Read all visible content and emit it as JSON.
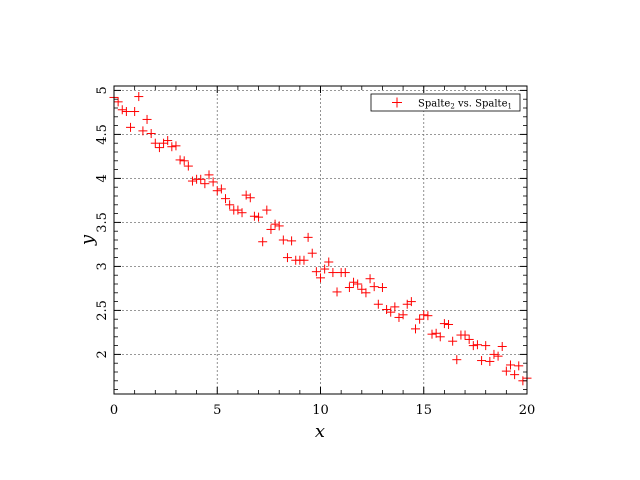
{
  "chart_data": {
    "type": "scatter",
    "xlabel": "x",
    "ylabel": "y",
    "xlim": [
      0,
      20
    ],
    "ylim": [
      1.55,
      5.05
    ],
    "grid": true,
    "legend_position": "top-right",
    "x_ticks": [
      "0",
      "5",
      "10",
      "15",
      "20"
    ],
    "y_ticks": [
      "2",
      "2.5",
      "3",
      "3.5",
      "4",
      "4.5",
      "5"
    ],
    "y_tick_values": [
      2,
      2.5,
      3,
      3.5,
      4,
      4.5,
      5
    ],
    "x_tick_values": [
      0,
      5,
      10,
      15,
      20
    ],
    "legend": {
      "main": "Spalte",
      "sub1": "2",
      "mid": " vs. Spalte",
      "sub2": "1"
    },
    "marker": "+",
    "color": "#ff0000",
    "series": [
      {
        "points": [
          [
            0.0,
            4.92
          ],
          [
            0.2,
            4.87
          ],
          [
            0.4,
            4.78
          ],
          [
            0.6,
            4.76
          ],
          [
            0.8,
            4.58
          ],
          [
            1.0,
            4.76
          ],
          [
            1.2,
            4.93
          ],
          [
            1.4,
            4.54
          ],
          [
            1.6,
            4.67
          ],
          [
            1.8,
            4.51
          ],
          [
            2.0,
            4.4
          ],
          [
            2.2,
            4.35
          ],
          [
            2.4,
            4.4
          ],
          [
            2.6,
            4.43
          ],
          [
            2.8,
            4.36
          ],
          [
            3.0,
            4.37
          ],
          [
            3.2,
            4.21
          ],
          [
            3.4,
            4.2
          ],
          [
            3.6,
            4.14
          ],
          [
            3.8,
            3.97
          ],
          [
            4.0,
            3.99
          ],
          [
            4.2,
            3.99
          ],
          [
            4.4,
            3.94
          ],
          [
            4.6,
            4.04
          ],
          [
            4.8,
            3.96
          ],
          [
            5.0,
            3.86
          ],
          [
            5.2,
            3.88
          ],
          [
            5.4,
            3.77
          ],
          [
            5.6,
            3.7
          ],
          [
            5.8,
            3.64
          ],
          [
            6.0,
            3.64
          ],
          [
            6.2,
            3.61
          ],
          [
            6.4,
            3.81
          ],
          [
            6.6,
            3.78
          ],
          [
            6.8,
            3.57
          ],
          [
            7.0,
            3.56
          ],
          [
            7.2,
            3.28
          ],
          [
            7.4,
            3.64
          ],
          [
            7.6,
            3.42
          ],
          [
            7.8,
            3.48
          ],
          [
            8.0,
            3.46
          ],
          [
            8.2,
            3.3
          ],
          [
            8.4,
            3.1
          ],
          [
            8.6,
            3.29
          ],
          [
            8.8,
            3.07
          ],
          [
            9.0,
            3.07
          ],
          [
            9.2,
            3.07
          ],
          [
            9.4,
            3.33
          ],
          [
            9.6,
            3.15
          ],
          [
            9.8,
            2.94
          ],
          [
            10.0,
            2.87
          ],
          [
            10.2,
            2.97
          ],
          [
            10.4,
            3.05
          ],
          [
            10.6,
            2.93
          ],
          [
            10.8,
            2.71
          ],
          [
            11.0,
            2.93
          ],
          [
            11.2,
            2.93
          ],
          [
            11.4,
            2.76
          ],
          [
            11.6,
            2.82
          ],
          [
            11.8,
            2.8
          ],
          [
            12.0,
            2.74
          ],
          [
            12.2,
            2.7
          ],
          [
            12.4,
            2.86
          ],
          [
            12.6,
            2.77
          ],
          [
            12.8,
            2.57
          ],
          [
            13.0,
            2.76
          ],
          [
            13.2,
            2.51
          ],
          [
            13.4,
            2.48
          ],
          [
            13.6,
            2.54
          ],
          [
            13.8,
            2.42
          ],
          [
            14.0,
            2.45
          ],
          [
            14.2,
            2.57
          ],
          [
            14.4,
            2.6
          ],
          [
            14.6,
            2.29
          ],
          [
            14.8,
            2.4
          ],
          [
            15.0,
            2.45
          ],
          [
            15.2,
            2.44
          ],
          [
            15.4,
            2.23
          ],
          [
            15.6,
            2.24
          ],
          [
            15.8,
            2.2
          ],
          [
            16.0,
            2.35
          ],
          [
            16.2,
            2.34
          ],
          [
            16.4,
            2.15
          ],
          [
            16.6,
            1.94
          ],
          [
            16.8,
            2.22
          ],
          [
            17.0,
            2.22
          ],
          [
            17.2,
            2.17
          ],
          [
            17.4,
            2.1
          ],
          [
            17.6,
            2.11
          ],
          [
            17.8,
            1.93
          ],
          [
            18.0,
            2.1
          ],
          [
            18.2,
            1.92
          ],
          [
            18.4,
            2.0
          ],
          [
            18.6,
            1.98
          ],
          [
            18.8,
            2.09
          ],
          [
            19.0,
            1.81
          ],
          [
            19.2,
            1.88
          ],
          [
            19.4,
            1.77
          ],
          [
            19.6,
            1.87
          ],
          [
            19.8,
            1.7
          ],
          [
            20.0,
            1.73
          ]
        ]
      }
    ]
  }
}
